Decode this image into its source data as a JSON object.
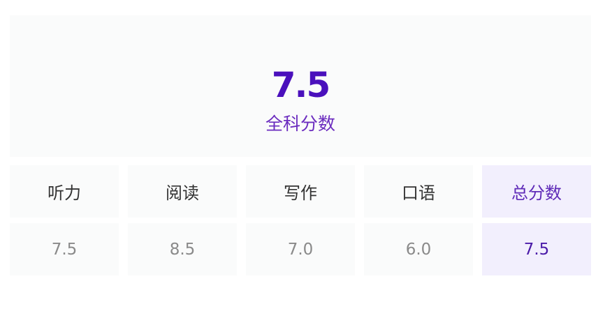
{
  "overall": {
    "score": "7.5",
    "label": "全科分数"
  },
  "table": {
    "headers": [
      "听力",
      "阅读",
      "写作",
      "口语",
      "总分数"
    ],
    "values": [
      "7.5",
      "8.5",
      "7.0",
      "6.0",
      "7.5"
    ]
  },
  "colors": {
    "accent": "#4a10bc",
    "highlight_bg": "#f2effd",
    "cell_bg": "#fafbfb"
  }
}
